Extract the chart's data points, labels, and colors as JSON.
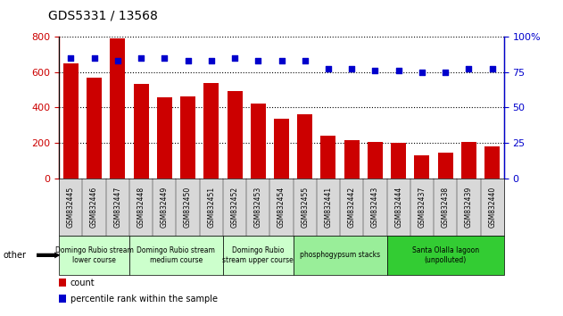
{
  "title": "GDS5331 / 13568",
  "categories": [
    "GSM832445",
    "GSM832446",
    "GSM832447",
    "GSM832448",
    "GSM832449",
    "GSM832450",
    "GSM832451",
    "GSM832452",
    "GSM832453",
    "GSM832454",
    "GSM832455",
    "GSM832441",
    "GSM832442",
    "GSM832443",
    "GSM832444",
    "GSM832437",
    "GSM832438",
    "GSM832439",
    "GSM832440"
  ],
  "counts": [
    650,
    570,
    790,
    530,
    455,
    460,
    535,
    490,
    420,
    335,
    360,
    240,
    215,
    205,
    200,
    130,
    145,
    205,
    180
  ],
  "percentile_ranks": [
    85,
    85,
    83,
    85,
    85,
    83,
    83,
    85,
    83,
    83,
    83,
    77,
    77,
    76,
    76,
    75,
    75,
    77,
    77
  ],
  "bar_color": "#cc0000",
  "dot_color": "#0000cc",
  "ylim_left": [
    0,
    800
  ],
  "ylim_right": [
    0,
    100
  ],
  "yticks_left": [
    0,
    200,
    400,
    600,
    800
  ],
  "yticks_right": [
    0,
    25,
    50,
    75,
    100
  ],
  "groups": [
    {
      "label": "Domingo Rubio stream\nlower course",
      "start": 0,
      "end": 3,
      "color": "#ccffcc"
    },
    {
      "label": "Domingo Rubio stream\nmedium course",
      "start": 3,
      "end": 7,
      "color": "#ccffcc"
    },
    {
      "label": "Domingo Rubio\nstream upper course",
      "start": 7,
      "end": 10,
      "color": "#ccffcc"
    },
    {
      "label": "phosphogypsum stacks",
      "start": 10,
      "end": 14,
      "color": "#99ee99"
    },
    {
      "label": "Santa Olalla lagoon\n(unpolluted)",
      "start": 14,
      "end": 19,
      "color": "#33cc33"
    }
  ],
  "other_label": "other",
  "legend_count_label": "count",
  "legend_pct_label": "percentile rank within the sample",
  "plot_bg": "#ffffff",
  "xtick_bg": "#d8d8d8"
}
